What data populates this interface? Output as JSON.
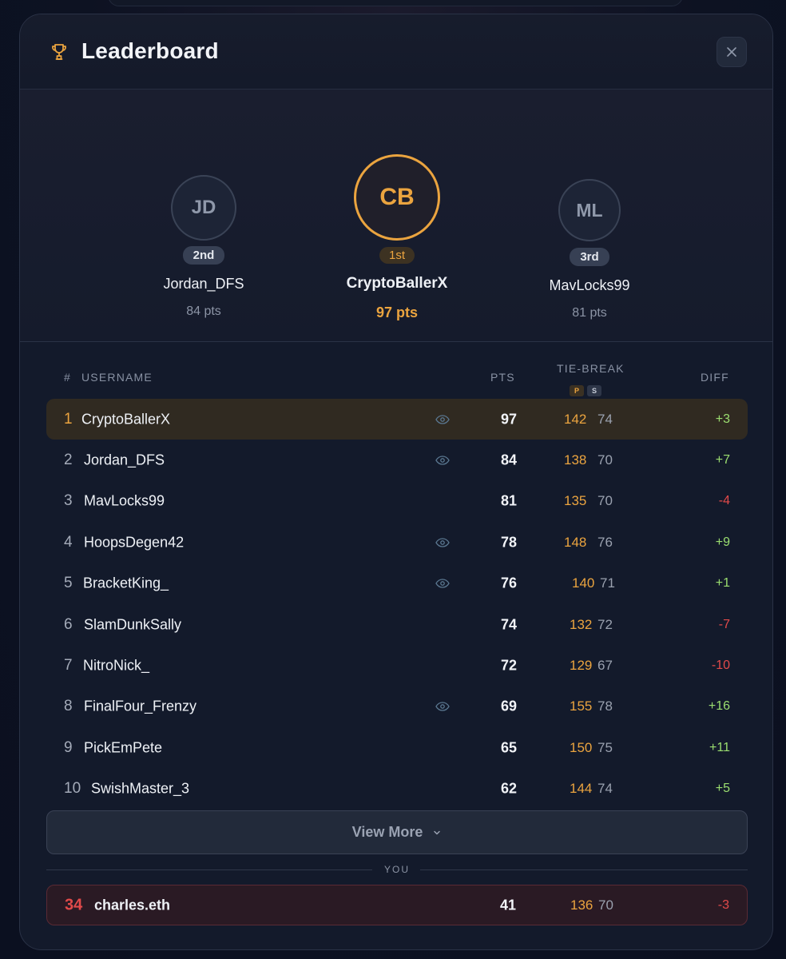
{
  "header": {
    "title": "Leaderboard"
  },
  "podium": [
    {
      "initials": "JD",
      "badge": "2nd",
      "name": "Jordan_DFS",
      "pts": "84 pts"
    },
    {
      "initials": "CB",
      "badge": "1st",
      "name": "CryptoBallerX",
      "pts": "97 pts"
    },
    {
      "initials": "ML",
      "badge": "3rd",
      "name": "MavLocks99",
      "pts": "81 pts"
    }
  ],
  "table": {
    "col_rank": "#",
    "col_username": "USERNAME",
    "col_pts": "PTS",
    "col_tiebreak": "TIE-BREAK",
    "tiebreak_p": "P",
    "tiebreak_s": "S",
    "col_diff": "DIFF",
    "rows": [
      {
        "rank": "1",
        "name": "CryptoBallerX",
        "eye": true,
        "pts": "97",
        "p": "142",
        "s": "74",
        "diff": "+3"
      },
      {
        "rank": "2",
        "name": "Jordan_DFS",
        "eye": true,
        "pts": "84",
        "p": "138",
        "s": "70",
        "diff": "+7"
      },
      {
        "rank": "3",
        "name": "MavLocks99",
        "eye": false,
        "pts": "81",
        "p": "135",
        "s": "70",
        "diff": "-4"
      },
      {
        "rank": "4",
        "name": "HoopsDegen42",
        "eye": true,
        "pts": "78",
        "p": "148",
        "s": "76",
        "diff": "+9"
      },
      {
        "rank": "5",
        "name": "BracketKing_",
        "eye": true,
        "pts": "76",
        "p": "140",
        "s": "71",
        "diff": "+1"
      },
      {
        "rank": "6",
        "name": "SlamDunkSally",
        "eye": false,
        "pts": "74",
        "p": "132",
        "s": "72",
        "diff": "-7"
      },
      {
        "rank": "7",
        "name": "NitroNick_",
        "eye": false,
        "pts": "72",
        "p": "129",
        "s": "67",
        "diff": "-10"
      },
      {
        "rank": "8",
        "name": "FinalFour_Frenzy",
        "eye": true,
        "pts": "69",
        "p": "155",
        "s": "78",
        "diff": "+16"
      },
      {
        "rank": "9",
        "name": "PickEmPete",
        "eye": false,
        "pts": "65",
        "p": "150",
        "s": "75",
        "diff": "+11"
      },
      {
        "rank": "10",
        "name": "SwishMaster_3",
        "eye": false,
        "pts": "62",
        "p": "144",
        "s": "74",
        "diff": "+5"
      }
    ]
  },
  "view_more": {
    "label": "View More"
  },
  "you": {
    "label": "YOU",
    "rank": "34",
    "name": "charles.eth",
    "pts": "41",
    "p": "136",
    "s": "70",
    "diff": "-3"
  },
  "colors": {
    "gold": "#eba43f",
    "positive": "#9bde70",
    "negative": "#e24a4a",
    "modal_bg": "#131a2b"
  },
  "icons": {
    "trophy": "trophy-icon",
    "close": "close-icon",
    "star": "star-icon",
    "eye": "eye-icon",
    "chevron": "chevron-down-icon"
  }
}
